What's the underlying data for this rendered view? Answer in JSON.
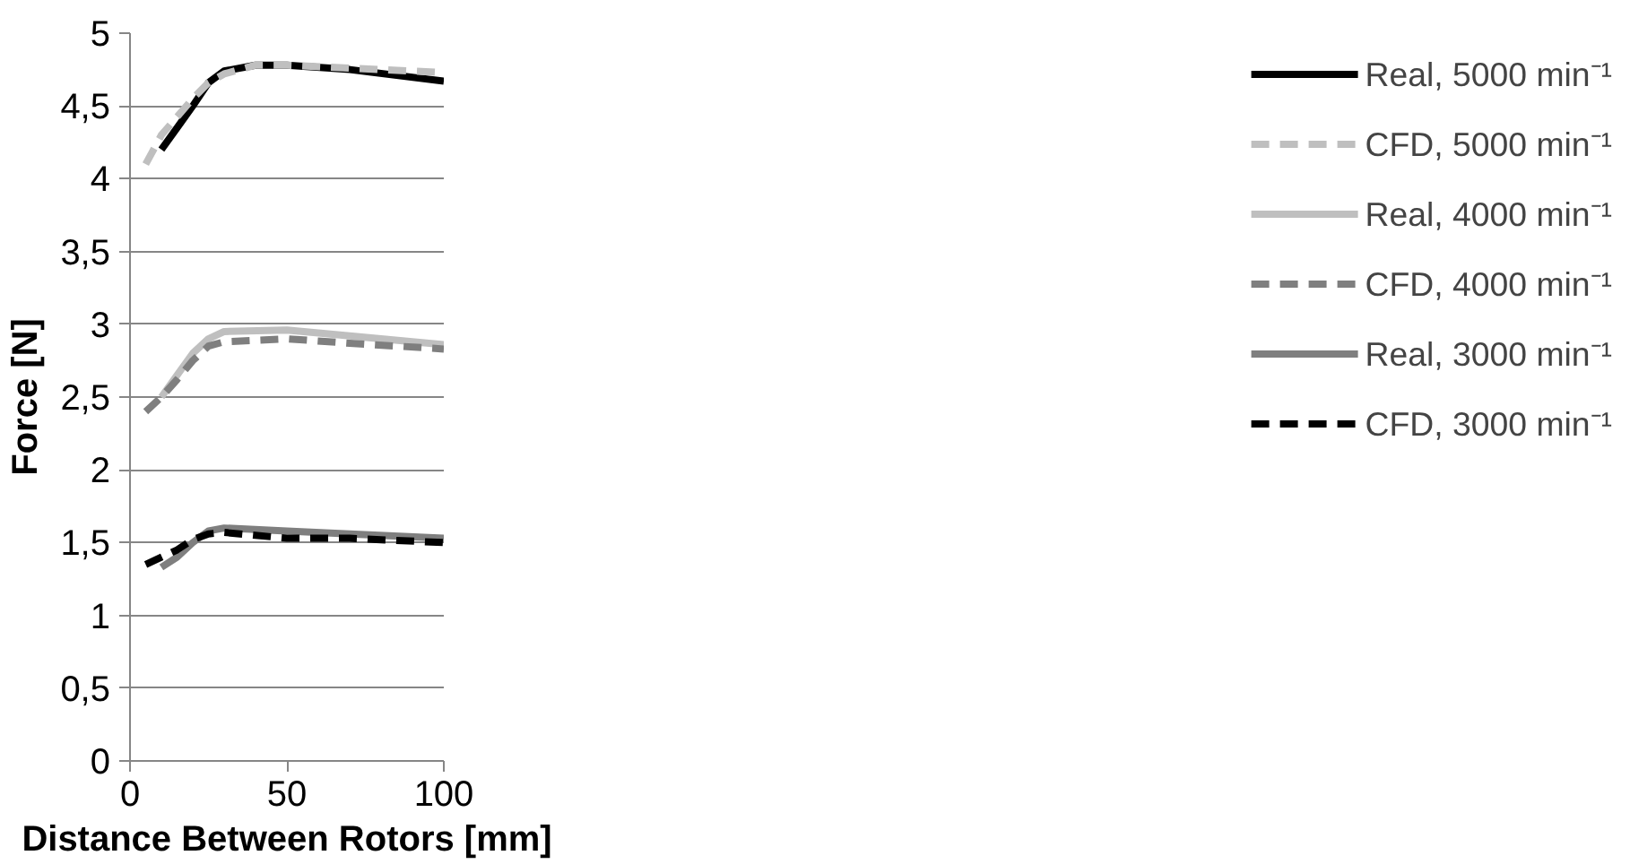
{
  "chart_data": {
    "type": "line",
    "xlabel": "Distance Between Rotors [mm]",
    "ylabel": "Force [N]",
    "xlim": [
      0,
      100
    ],
    "xticks": [
      0,
      50,
      100
    ],
    "ylim": [
      0,
      5
    ],
    "yticks": [
      0,
      {
        "value": 0.5,
        "label": "0,5"
      },
      1,
      {
        "value": 1.5,
        "label": "1,5"
      },
      2,
      {
        "value": 2.5,
        "label": "2,5"
      },
      3,
      {
        "value": 3.5,
        "label": "3,5"
      },
      4,
      {
        "value": 4.5,
        "label": "4,5"
      },
      5
    ],
    "grid": "y",
    "legend": "right",
    "marker": "none",
    "series": [
      {
        "name": "Real, 5000 min⁻¹",
        "color": "#000000",
        "line_style": "solid",
        "x": [
          10,
          15,
          20,
          25,
          30,
          40,
          50,
          70,
          100
        ],
        "values": [
          4.2,
          4.35,
          4.5,
          4.66,
          4.74,
          4.78,
          4.78,
          4.75,
          4.67
        ]
      },
      {
        "name": "CFD, 5000 min⁻¹",
        "color": "#bfbfbf",
        "line_style": "dashed",
        "x": [
          5,
          10,
          20,
          25,
          30,
          40,
          50,
          70,
          100
        ],
        "values": [
          4.1,
          4.3,
          4.55,
          4.66,
          4.72,
          4.78,
          4.78,
          4.76,
          4.73
        ]
      },
      {
        "name": "Real, 4000 min⁻¹",
        "color": "#bfbfbf",
        "line_style": "solid",
        "x": [
          10,
          15,
          20,
          25,
          30,
          50,
          70,
          100
        ],
        "values": [
          2.5,
          2.65,
          2.8,
          2.9,
          2.95,
          2.96,
          2.92,
          2.86
        ]
      },
      {
        "name": "CFD, 4000 min⁻¹",
        "color": "#7f7f7f",
        "line_style": "dashed",
        "x": [
          5,
          10,
          15,
          20,
          25,
          30,
          50,
          70,
          100
        ],
        "values": [
          2.4,
          2.5,
          2.62,
          2.75,
          2.85,
          2.88,
          2.9,
          2.87,
          2.83
        ]
      },
      {
        "name": "Real, 3000 min⁻¹",
        "color": "#7f7f7f",
        "line_style": "solid",
        "x": [
          10,
          15,
          20,
          25,
          30,
          50,
          70,
          100
        ],
        "values": [
          1.33,
          1.4,
          1.5,
          1.58,
          1.6,
          1.58,
          1.56,
          1.53
        ]
      },
      {
        "name": "CFD, 3000 min⁻¹",
        "color": "#000000",
        "line_style": "dashed",
        "x": [
          5,
          10,
          15,
          20,
          25,
          30,
          50,
          70,
          100
        ],
        "values": [
          1.35,
          1.4,
          1.45,
          1.52,
          1.56,
          1.57,
          1.53,
          1.53,
          1.5
        ]
      }
    ]
  }
}
